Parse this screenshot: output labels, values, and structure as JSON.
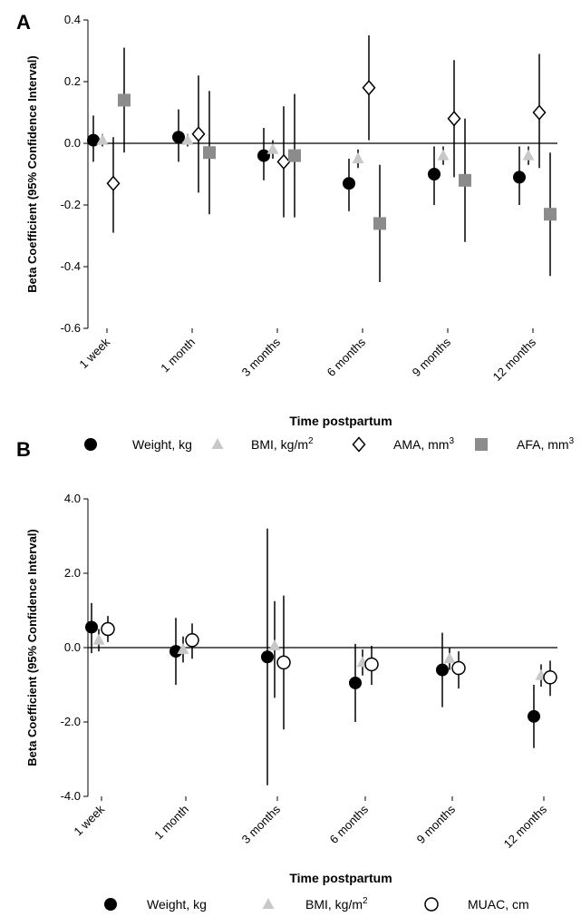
{
  "chart_data": [
    {
      "type": "scatter",
      "panel_label": "A",
      "categories": [
        "1 week",
        "1 month",
        "3 months",
        "6 months",
        "9 months",
        "12 months"
      ],
      "xlabel": "Time postpartum",
      "ylabel": "Beta Coefficient (95% Confidence Interval)",
      "ylim": [
        -0.6,
        0.4
      ],
      "yticks": [
        "0.4",
        "0.2",
        "0.0",
        "-0.2",
        "-0.4",
        "-0.6"
      ],
      "ytick_values": [
        0.4,
        0.2,
        0.0,
        -0.2,
        -0.4,
        -0.6
      ],
      "reference_line": 0,
      "grid": false,
      "legend_position": "bottom",
      "series": [
        {
          "name": "Weight, kg",
          "marker": "filled-circle",
          "color": "#000000",
          "values": [
            0.01,
            0.02,
            -0.04,
            -0.13,
            -0.1,
            -0.11
          ],
          "lower": [
            -0.06,
            -0.06,
            -0.12,
            -0.22,
            -0.2,
            -0.2
          ],
          "upper": [
            0.09,
            0.11,
            0.05,
            -0.05,
            -0.01,
            -0.01
          ]
        },
        {
          "name": "BMI, kg/m",
          "name_superscript": "2",
          "marker": "triangle",
          "color": "#c8c8c8",
          "values": [
            0.01,
            0.01,
            -0.02,
            -0.05,
            -0.04,
            -0.04
          ],
          "lower": [
            -0.01,
            -0.01,
            -0.05,
            -0.08,
            -0.07,
            -0.07
          ],
          "upper": [
            0.03,
            0.03,
            0.01,
            -0.02,
            -0.01,
            -0.01
          ]
        },
        {
          "name": "AMA, mm",
          "name_superscript": "3",
          "marker": "open-diamond",
          "color": "#000000",
          "values": [
            -0.13,
            0.03,
            -0.06,
            0.18,
            0.08,
            0.1
          ],
          "lower": [
            -0.29,
            -0.16,
            -0.24,
            0.01,
            -0.11,
            -0.08
          ],
          "upper": [
            0.02,
            0.22,
            0.12,
            0.35,
            0.27,
            0.29
          ]
        },
        {
          "name": "AFA, mm",
          "name_superscript": "3",
          "marker": "filled-square",
          "color": "#8c8c8c",
          "values": [
            0.14,
            -0.03,
            -0.04,
            -0.26,
            -0.12,
            -0.23
          ],
          "lower": [
            -0.03,
            -0.23,
            -0.24,
            -0.45,
            -0.32,
            -0.43
          ],
          "upper": [
            0.31,
            0.17,
            0.16,
            -0.07,
            0.08,
            -0.03
          ]
        }
      ]
    },
    {
      "type": "scatter",
      "panel_label": "B",
      "categories": [
        "1 week",
        "1 month",
        "3 months",
        "6 months",
        "9 months",
        "12 months"
      ],
      "xlabel": "Time postpartum",
      "ylabel": "Beta Coefficient (95% Confidence Interval)",
      "ylim": [
        -4.0,
        4.0
      ],
      "yticks": [
        "4.0",
        "2.0",
        "0.0",
        "-2.0",
        "-4.0"
      ],
      "ytick_values": [
        4.0,
        2.0,
        0.0,
        -2.0,
        -4.0
      ],
      "reference_line": 0,
      "grid": false,
      "legend_position": "bottom",
      "series": [
        {
          "name": "Weight, kg",
          "marker": "filled-circle",
          "color": "#000000",
          "values": [
            0.55,
            -0.1,
            -0.25,
            -0.95,
            -0.6,
            -1.85
          ],
          "lower": [
            -0.15,
            -1.0,
            -3.7,
            -2.0,
            -1.6,
            -2.7
          ],
          "upper": [
            1.2,
            0.8,
            3.2,
            0.1,
            0.4,
            -1.0
          ]
        },
        {
          "name": "BMI, kg/m",
          "name_superscript": "2",
          "marker": "triangle",
          "color": "#c8c8c8",
          "values": [
            0.2,
            -0.05,
            0.05,
            -0.4,
            -0.3,
            -0.75
          ],
          "lower": [
            -0.1,
            -0.4,
            -1.35,
            -0.75,
            -0.6,
            -1.05
          ],
          "upper": [
            0.5,
            0.3,
            1.25,
            -0.05,
            0.0,
            -0.45
          ]
        },
        {
          "name": "MUAC, cm",
          "marker": "open-circle",
          "color": "#000000",
          "values": [
            0.5,
            0.2,
            -0.4,
            -0.45,
            -0.55,
            -0.8
          ],
          "lower": [
            0.15,
            -0.3,
            -2.2,
            -1.0,
            -1.1,
            -1.3
          ],
          "upper": [
            0.85,
            0.65,
            1.4,
            0.05,
            -0.1,
            -0.35
          ]
        }
      ]
    }
  ]
}
